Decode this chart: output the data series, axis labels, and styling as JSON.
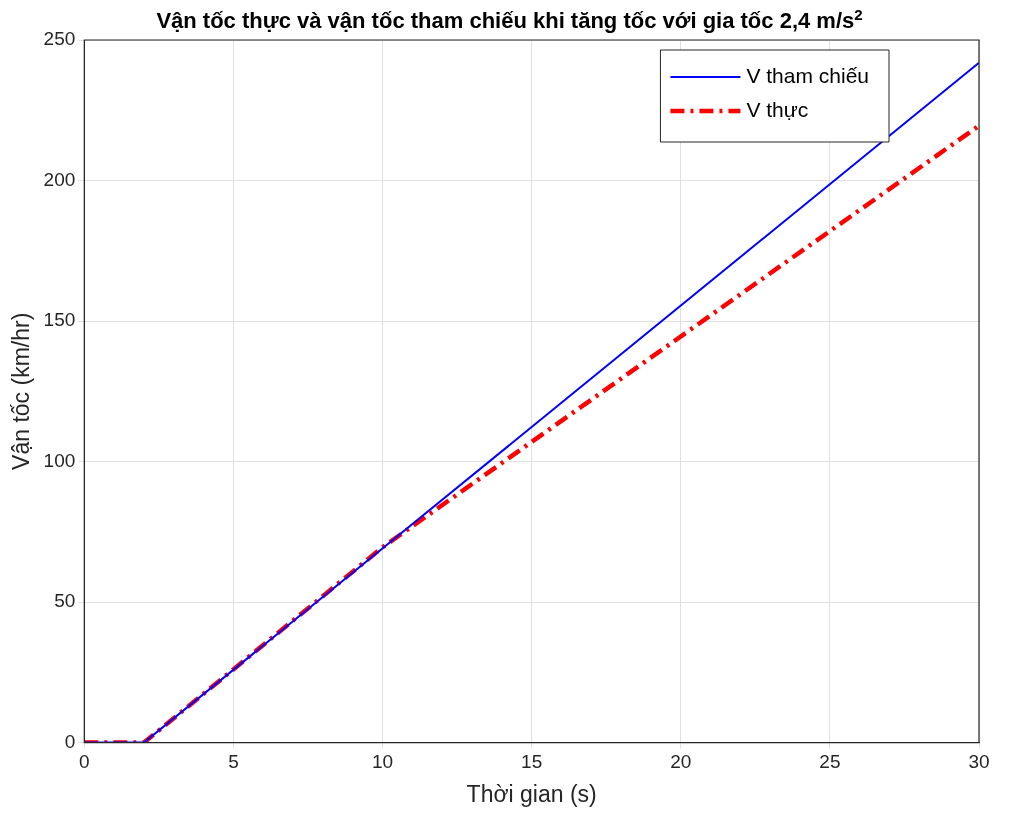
{
  "chart_data": {
    "type": "line",
    "title": "Vận tốc thực và vận tốc tham chiếu khi tăng tốc với gia tốc 2,4 m/s$^{2}$",
    "xlabel": "Thời gian (s)",
    "ylabel": "Vận tốc (km/hr)",
    "xlim": [
      0,
      30
    ],
    "xticks": [
      0,
      5,
      10,
      15,
      20,
      25,
      30
    ],
    "ylim": [
      0,
      250
    ],
    "yticks": [
      0,
      50,
      100,
      150,
      200,
      250
    ],
    "grid": true,
    "legend": "top right",
    "series": [
      {
        "name": "V tham chiếu",
        "color": "#0000ff",
        "line_style": "solid",
        "x": [
          0,
          2,
          30
        ],
        "values": [
          0,
          0,
          241.9
        ]
      },
      {
        "name": "V thực",
        "color": "#ff0000",
        "line_style": "dashdot",
        "x": [
          0,
          2,
          10,
          14,
          30
        ],
        "values": [
          0,
          0,
          69.5,
          99.5,
          219.5
        ]
      }
    ]
  }
}
